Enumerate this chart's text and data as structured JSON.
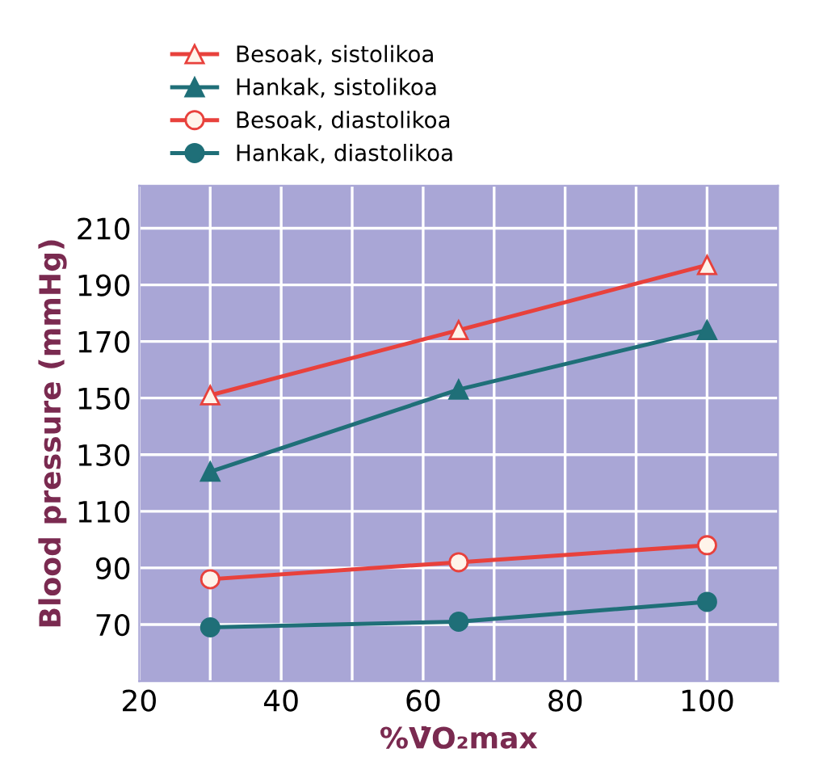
{
  "chart_data": {
    "type": "line",
    "xlabel": "%V̇O₂max",
    "ylabel": "Blood pressure (mmHg)",
    "xlim": [
      20,
      110
    ],
    "ylim": [
      50,
      225
    ],
    "xticks": [
      20,
      {
        "value": 30,
        "label": null
      },
      40,
      {
        "value": 50,
        "label": null
      },
      60,
      {
        "value": 70,
        "label": null
      },
      80,
      {
        "value": 90,
        "label": null
      },
      100
    ],
    "yticks": [
      70,
      90,
      110,
      130,
      150,
      170,
      190,
      210
    ],
    "grid": true,
    "legend": "top",
    "line_style": "solid",
    "series": [
      {
        "name": "Besoak, sistolikoa",
        "color": "#e8413c",
        "marker": "triangle",
        "x": [
          30,
          65,
          100
        ],
        "values": [
          151,
          174,
          197
        ]
      },
      {
        "name": "Hankak, sistolikoa",
        "color": "#1f6f78",
        "marker": "triangle",
        "x": [
          30,
          65,
          100
        ],
        "values": [
          124,
          153,
          174
        ]
      },
      {
        "name": "Besoak, diastolikoa",
        "color": "#e8413c",
        "marker": "circle",
        "x": [
          30,
          65,
          100
        ],
        "values": [
          86,
          92,
          98
        ]
      },
      {
        "name": "Hankak, diastolikoa",
        "color": "#1f6f78",
        "marker": "circle",
        "x": [
          30,
          65,
          100
        ],
        "values": [
          69,
          71,
          78
        ]
      }
    ]
  }
}
